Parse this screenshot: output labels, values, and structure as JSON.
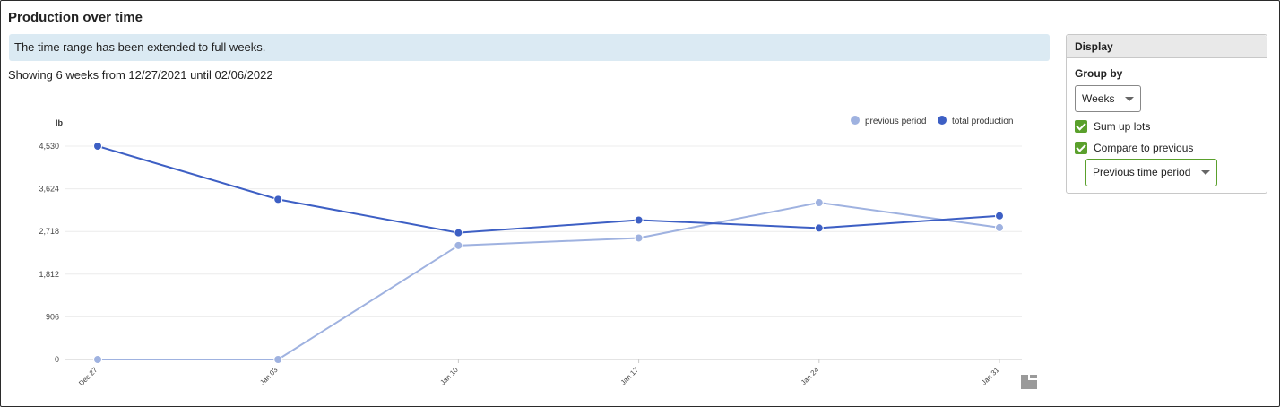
{
  "page": {
    "title": "Production over time",
    "info_message": "The time range has been extended to full weeks.",
    "range_text": "Showing 6 weeks from 12/27/2021 until 02/06/2022"
  },
  "display_panel": {
    "header": "Display",
    "group_by_label": "Group by",
    "group_by_value": "Weeks",
    "sum_up_lots_label": "Sum up lots",
    "sum_up_lots_checked": true,
    "compare_label": "Compare to previous",
    "compare_checked": true,
    "compare_value": "Previous time period",
    "accent_color": "#5aa02c"
  },
  "chart_data": {
    "type": "line",
    "ylabel": "lb",
    "categories": [
      "Dec 27",
      "Jan 03",
      "Jan 10",
      "Jan 17",
      "Jan 24",
      "Jan 31"
    ],
    "yticks": [
      0,
      906,
      1812,
      2718,
      3624,
      4530
    ],
    "ytick_labels": [
      "0",
      "906",
      "1,812",
      "2,718",
      "3,624",
      "4,530"
    ],
    "ylim": [
      0,
      4530
    ],
    "grid": true,
    "legend_position": "top-right",
    "series": [
      {
        "name": "previous period",
        "color": "#9fb2e0",
        "values": [
          0,
          0,
          2420,
          2580,
          3330,
          2800
        ]
      },
      {
        "name": "total production",
        "color": "#3d5fc4",
        "values": [
          4530,
          3400,
          2690,
          2960,
          2790,
          3050
        ]
      }
    ]
  }
}
